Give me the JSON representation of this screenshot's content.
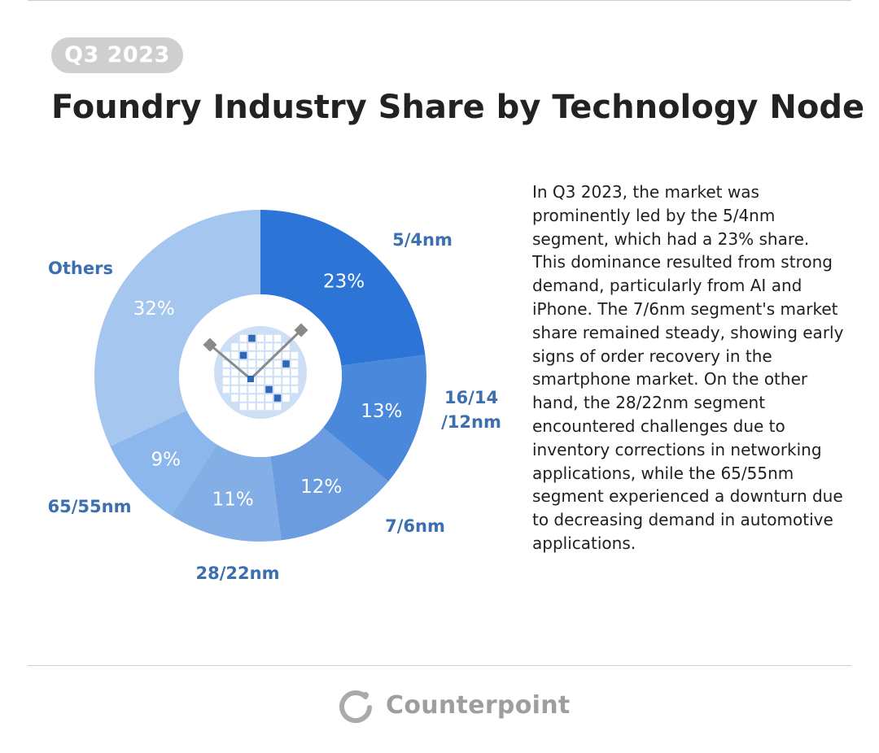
{
  "badge": "Q3 2023",
  "title": "Foundry Industry Share by Technology Node",
  "description": "In Q3 2023, the market was\nprominently led by the 5/4nm\nsegment, which had a 23% share.\nThis dominance resulted from strong\ndemand, particularly from AI and\niPhone. The 7/6nm segment's market\nshare remained steady, showing early\nsigns of order recovery in the\nsmartphone market. On the other\nhand, the 28/22nm segment\nencountered challenges due to\ninventory corrections in networking\napplications, while the 65/55nm\nsegment experienced a downturn due\nto decreasing demand in automotive\napplications.",
  "brand": {
    "name": "Counterpoint",
    "icon": "counterpoint-logo-icon"
  },
  "colors": {
    "label_text": "#3b6fb0",
    "value_text": "#ffffff",
    "badge_bg": "#cfcfcf",
    "brand_grey": "#9e9e9e"
  },
  "chart_data": {
    "type": "pie",
    "style": "donut",
    "center_icon": "wafer-icon",
    "slices": [
      {
        "label": "5/4nm",
        "value": 23,
        "value_label": "23%",
        "color": "#2c74d6"
      },
      {
        "label": "16/14\n/12nm",
        "value": 13,
        "value_label": "13%",
        "color": "#4a88dc"
      },
      {
        "label": "7/6nm",
        "value": 12,
        "value_label": "12%",
        "color": "#6a9cdf"
      },
      {
        "label": "28/22nm",
        "value": 11,
        "value_label": "11%",
        "color": "#84aee6"
      },
      {
        "label": "65/55nm",
        "value": 9,
        "value_label": "9%",
        "color": "#8cb7ec"
      },
      {
        "label": "Others",
        "value": 32,
        "value_label": "32%",
        "color": "#a5c6ee"
      }
    ]
  }
}
